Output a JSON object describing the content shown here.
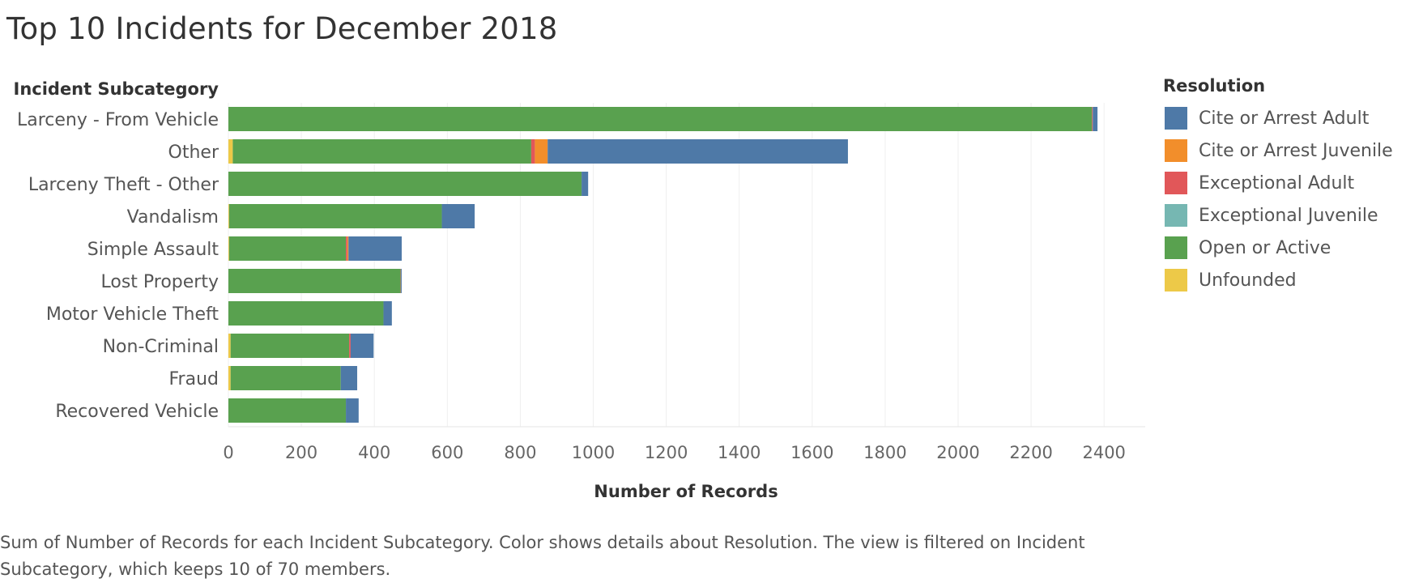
{
  "chart_data": {
    "type": "bar",
    "orientation": "horizontal",
    "stacked": true,
    "title": "Top 10 Incidents for December 2018",
    "category_axis_title": "Incident Subcategory",
    "xlabel": "Number of Records",
    "xlim": [
      0,
      2500
    ],
    "xticks": [
      0,
      200,
      400,
      600,
      800,
      1000,
      1200,
      1400,
      1600,
      1800,
      2000,
      2200,
      2400
    ],
    "grid": true,
    "legend_title": "Resolution",
    "legend_position": "right",
    "categories": [
      "Larceny - From Vehicle",
      "Other",
      "Larceny Theft - Other",
      "Vandalism",
      "Simple Assault",
      "Lost Property",
      "Motor Vehicle Theft",
      "Non-Criminal",
      "Fraud",
      "Recovered Vehicle"
    ],
    "series": [
      {
        "name": "Unfounded",
        "color": "#EDC948",
        "values": [
          0,
          12,
          0,
          2,
          2,
          0,
          0,
          6,
          6,
          0
        ]
      },
      {
        "name": "Open or Active",
        "color": "#59A14F",
        "values": [
          2367,
          818,
          968,
          583,
          320,
          472,
          425,
          325,
          302,
          322
        ]
      },
      {
        "name": "Exceptional Adult",
        "color": "#E15759",
        "values": [
          2,
          10,
          0,
          0,
          4,
          1,
          0,
          4,
          0,
          0
        ]
      },
      {
        "name": "Exceptional Juvenile",
        "color": "#76B7B2",
        "values": [
          0,
          0,
          0,
          0,
          0,
          0,
          0,
          0,
          0,
          0
        ]
      },
      {
        "name": "Cite or Arrest Juvenile",
        "color": "#F28E2B",
        "values": [
          0,
          35,
          0,
          0,
          3,
          0,
          0,
          0,
          0,
          0
        ]
      },
      {
        "name": "Cite or Arrest Adult",
        "color": "#4E79A7",
        "values": [
          13,
          823,
          18,
          90,
          146,
          2,
          23,
          63,
          45,
          35
        ]
      }
    ],
    "legend_order": [
      "Cite or Arrest Adult",
      "Cite or Arrest Juvenile",
      "Exceptional Adult",
      "Exceptional Juvenile",
      "Open or Active",
      "Unfounded"
    ]
  },
  "caption": "Sum of Number of Records for each Incident Subcategory.  Color shows details about Resolution. The view is filtered on Incident Subcategory, which keeps 10 of 70 members."
}
